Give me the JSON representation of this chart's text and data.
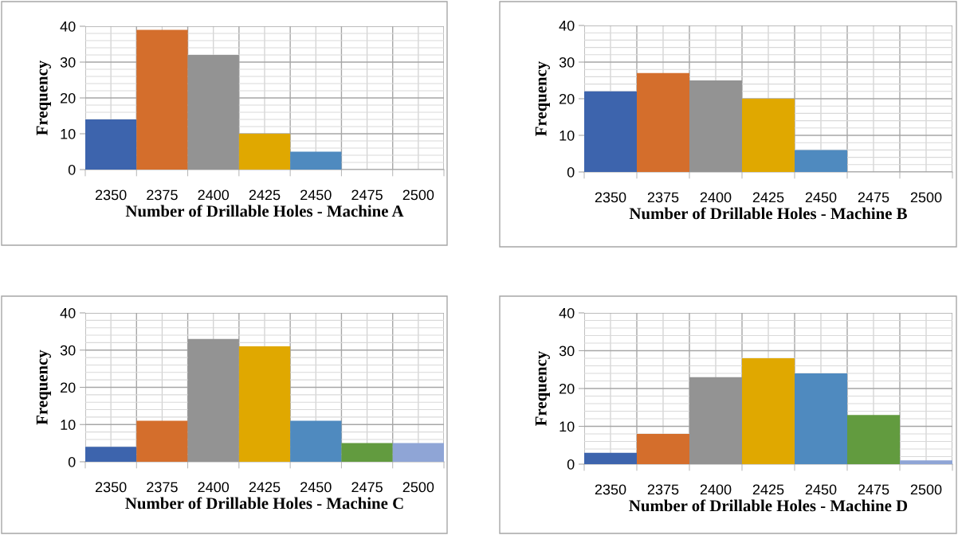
{
  "chart_data": [
    {
      "type": "bar",
      "categories": [
        "2350",
        "2375",
        "2400",
        "2425",
        "2450",
        "2475",
        "2500"
      ],
      "values": [
        14,
        39,
        32,
        10,
        5,
        0,
        0
      ],
      "colors": [
        "#3d64ad",
        "#d46e2c",
        "#939393",
        "#e0a800",
        "#4f8abf",
        "#629b3f",
        "#8fa5d6"
      ],
      "ylim": [
        0,
        40
      ],
      "yticks": [
        0,
        10,
        20,
        30,
        40
      ],
      "xlabel": "Number of Drillable Holes - Machine A",
      "ylabel": "Frequency",
      "grid": true
    },
    {
      "type": "bar",
      "categories": [
        "2350",
        "2375",
        "2400",
        "2425",
        "2450",
        "2475",
        "2500"
      ],
      "values": [
        22,
        27,
        25,
        20,
        6,
        0,
        0
      ],
      "colors": [
        "#3d64ad",
        "#d46e2c",
        "#939393",
        "#e0a800",
        "#4f8abf",
        "#629b3f",
        "#8fa5d6"
      ],
      "ylim": [
        0,
        40
      ],
      "yticks": [
        0,
        10,
        20,
        30,
        40
      ],
      "xlabel": "Number of Drillable Holes - Machine B",
      "ylabel": "Frequency",
      "grid": true
    },
    {
      "type": "bar",
      "categories": [
        "2350",
        "2375",
        "2400",
        "2425",
        "2450",
        "2475",
        "2500"
      ],
      "values": [
        4,
        11,
        33,
        31,
        11,
        5,
        5
      ],
      "colors": [
        "#3d64ad",
        "#d46e2c",
        "#939393",
        "#e0a800",
        "#4f8abf",
        "#629b3f",
        "#8fa5d6"
      ],
      "ylim": [
        0,
        40
      ],
      "yticks": [
        0,
        10,
        20,
        30,
        40
      ],
      "xlabel": "Number of Drillable Holes - Machine C",
      "ylabel": "Frequency",
      "grid": true
    },
    {
      "type": "bar",
      "categories": [
        "2350",
        "2375",
        "2400",
        "2425",
        "2450",
        "2475",
        "2500"
      ],
      "values": [
        3,
        8,
        23,
        28,
        24,
        13,
        1
      ],
      "colors": [
        "#3d64ad",
        "#d46e2c",
        "#939393",
        "#e0a800",
        "#4f8abf",
        "#629b3f",
        "#8fa5d6"
      ],
      "ylim": [
        0,
        40
      ],
      "yticks": [
        0,
        10,
        20,
        30,
        40
      ],
      "xlabel": "Number of Drillable Holes - Machine D",
      "ylabel": "Frequency",
      "grid": true
    }
  ]
}
